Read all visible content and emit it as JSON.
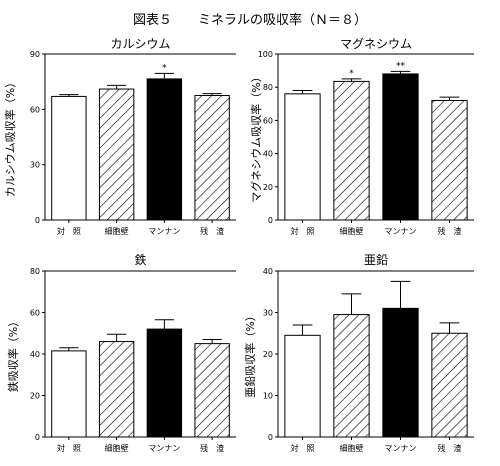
{
  "figure": {
    "title": "図表５　　ミネラルの吸収率（Ｎ＝８）"
  },
  "chart_data": [
    {
      "type": "bar",
      "title": "カルシウム",
      "ylabel": "カルシウム吸収率（%）",
      "ylim": [
        0,
        90
      ],
      "yticks": [
        0,
        30,
        60,
        90
      ],
      "categories": [
        "対　照",
        "細胞壁",
        "マンナン",
        "残　渣"
      ],
      "values": [
        67,
        71,
        76.5,
        67.5
      ],
      "errors": [
        1,
        2,
        3,
        1
      ],
      "significance": [
        "",
        "",
        "*",
        ""
      ],
      "fills": [
        "white",
        "hatch",
        "black",
        "hatch"
      ]
    },
    {
      "type": "bar",
      "title": "マグネシウム",
      "ylabel": "マグネシウム吸収率（%）",
      "ylim": [
        0,
        100
      ],
      "yticks": [
        0,
        20,
        40,
        60,
        80,
        100
      ],
      "categories": [
        "対　照",
        "細胞壁",
        "マンナン",
        "残　渣"
      ],
      "values": [
        76,
        83.5,
        88,
        72
      ],
      "errors": [
        2,
        1.5,
        1.5,
        2
      ],
      "significance": [
        "",
        "*",
        "**",
        ""
      ],
      "fills": [
        "white",
        "hatch",
        "black",
        "hatch"
      ]
    },
    {
      "type": "bar",
      "title": "鉄",
      "ylabel": "鉄吸収率（%）",
      "ylim": [
        0,
        80
      ],
      "yticks": [
        0,
        20,
        40,
        60,
        80
      ],
      "categories": [
        "対　照",
        "細胞壁",
        "マンナン",
        "残　渣"
      ],
      "values": [
        41.5,
        46,
        52,
        45
      ],
      "errors": [
        1.5,
        3.5,
        4.5,
        2
      ],
      "significance": [
        "",
        "",
        "",
        ""
      ],
      "fills": [
        "white",
        "hatch",
        "black",
        "hatch"
      ]
    },
    {
      "type": "bar",
      "title": "亜鉛",
      "ylabel": "亜鉛吸収率（%）",
      "ylim": [
        0,
        40
      ],
      "yticks": [
        0,
        10,
        20,
        30,
        40
      ],
      "categories": [
        "対　照",
        "細胞壁",
        "マンナン",
        "残　渣"
      ],
      "values": [
        24.5,
        29.5,
        31,
        25
      ],
      "errors": [
        2.5,
        5,
        6.5,
        2.5
      ],
      "significance": [
        "",
        "",
        "",
        ""
      ],
      "fills": [
        "white",
        "hatch",
        "black",
        "hatch"
      ]
    }
  ]
}
